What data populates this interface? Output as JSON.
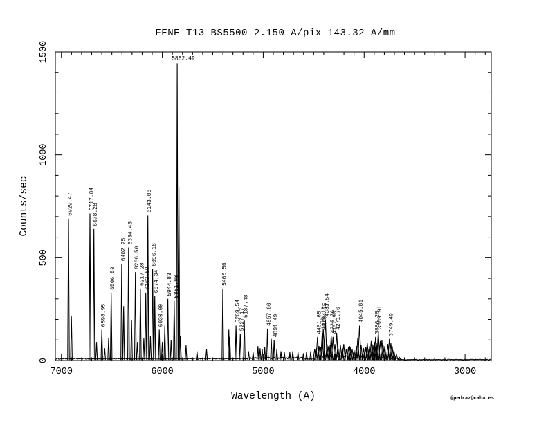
{
  "title": "FENE  T13  BS5500  2.150 A/pix  143.32 A/mm",
  "credit": "@pedraz@caha.es",
  "colors": {
    "line": "#000000",
    "background": "#ffffff",
    "text": "#000000"
  },
  "chart_data": {
    "type": "line",
    "title": "FENE  T13  BS5500  2.150 A/pix  143.32 A/mm",
    "xlabel": "Wavelength (A)",
    "ylabel": "Counts/sec",
    "x_axis": {
      "left_value": 7060,
      "right_value": 2740,
      "reversed": true,
      "major_ticks": [
        7000,
        6000,
        5000,
        4000,
        3000
      ],
      "minor_tick_interval": 100
    },
    "y_axis": {
      "min": 0,
      "max": 1500,
      "major_ticks": [
        0,
        500,
        1000,
        1500
      ],
      "minor_tick_interval": 100
    },
    "legend": "none",
    "grid": false,
    "baseline_counts": 6,
    "labeled_peaks": [
      {
        "label": "6929.47",
        "wavelength": 6929.47,
        "counts": 690,
        "orientation": "vertical"
      },
      {
        "label": "6717.04",
        "wavelength": 6717.04,
        "counts": 715,
        "orientation": "vertical"
      },
      {
        "label": "6678.28",
        "wavelength": 6678.28,
        "counts": 640,
        "orientation": "vertical"
      },
      {
        "label": "6598.95",
        "wavelength": 6598.95,
        "counts": 150,
        "orientation": "vertical"
      },
      {
        "label": "6506.53",
        "wavelength": 6506.53,
        "counts": 330,
        "orientation": "vertical"
      },
      {
        "label": "6402.25",
        "wavelength": 6402.25,
        "counts": 470,
        "orientation": "vertical"
      },
      {
        "label": "6334.43",
        "wavelength": 6334.43,
        "counts": 550,
        "orientation": "vertical"
      },
      {
        "label": "6266.50",
        "wavelength": 6266.5,
        "counts": 430,
        "orientation": "vertical"
      },
      {
        "label": "6217.28",
        "wavelength": 6217.28,
        "counts": 350,
        "orientation": "vertical"
      },
      {
        "label": "6163.59",
        "wavelength": 6163.59,
        "counts": 330,
        "orientation": "vertical"
      },
      {
        "label": "6143.06",
        "wavelength": 6143.06,
        "counts": 705,
        "orientation": "vertical"
      },
      {
        "label": "6096.18",
        "wavelength": 6096.18,
        "counts": 445,
        "orientation": "vertical"
      },
      {
        "label": "6074.34",
        "wavelength": 6074.34,
        "counts": 315,
        "orientation": "vertical"
      },
      {
        "label": "6030.00",
        "wavelength": 6030.0,
        "counts": 150,
        "orientation": "vertical"
      },
      {
        "label": "5944.83",
        "wavelength": 5944.83,
        "counts": 300,
        "orientation": "vertical"
      },
      {
        "label": "5881.90",
        "wavelength": 5881.9,
        "counts": 290,
        "orientation": "vertical"
      },
      {
        "label": "5852.49",
        "wavelength": 5852.49,
        "counts": 1445,
        "orientation": "horizontal"
      },
      {
        "label": "5400.56",
        "wavelength": 5400.56,
        "counts": 350,
        "orientation": "vertical"
      },
      {
        "label": "5269.54",
        "wavelength": 5269.54,
        "counts": 170,
        "orientation": "vertical"
      },
      {
        "label": "5227.17",
        "wavelength": 5227.17,
        "counts": 130,
        "orientation": "vertical"
      },
      {
        "label": "5187.48",
        "wavelength": 5187.48,
        "counts": 195,
        "orientation": "vertical"
      },
      {
        "label": "4957.60",
        "wavelength": 4957.6,
        "counts": 155,
        "orientation": "vertical"
      },
      {
        "label": "4891.49",
        "wavelength": 4891.49,
        "counts": 100,
        "orientation": "vertical"
      },
      {
        "label": "4461.65",
        "wavelength": 4461.65,
        "counts": 115,
        "orientation": "vertical"
      },
      {
        "label": "4415.12",
        "wavelength": 4415.12,
        "counts": 135,
        "orientation": "vertical"
      },
      {
        "label": "4404.75",
        "wavelength": 4404.75,
        "counts": 155,
        "orientation": "vertical"
      },
      {
        "label": "4383.54",
        "wavelength": 4383.54,
        "counts": 200,
        "orientation": "vertical"
      },
      {
        "label": "4325.76",
        "wavelength": 4325.76,
        "counts": 120,
        "orientation": "vertical"
      },
      {
        "label": "4307.90",
        "wavelength": 4307.9,
        "counts": 115,
        "orientation": "vertical"
      },
      {
        "label": "4271.76",
        "wavelength": 4271.76,
        "counts": 135,
        "orientation": "vertical"
      },
      {
        "label": "4045.81",
        "wavelength": 4045.81,
        "counts": 170,
        "orientation": "vertical"
      },
      {
        "label": "3886.28",
        "wavelength": 3886.28,
        "counts": 115,
        "orientation": "vertical"
      },
      {
        "label": "3859.91",
        "wavelength": 3859.91,
        "counts": 140,
        "orientation": "vertical"
      },
      {
        "label": "3749.49",
        "wavelength": 3749.49,
        "counts": 105,
        "orientation": "vertical"
      }
    ],
    "unlabeled_peaks": [
      [
        6901,
        215
      ],
      [
        6652,
        90
      ],
      [
        6571,
        60
      ],
      [
        6532,
        110
      ],
      [
        6383,
        265
      ],
      [
        6305,
        195
      ],
      [
        6246,
        90
      ],
      [
        6183,
        110
      ],
      [
        6118,
        120
      ],
      [
        6000,
        90
      ],
      [
        5975,
        170
      ],
      [
        5913,
        100
      ],
      [
        5835,
        845
      ],
      [
        5820,
        120
      ],
      [
        5765,
        75
      ],
      [
        5656,
        45
      ],
      [
        5562,
        55
      ],
      [
        5341,
        150
      ],
      [
        5331,
        115
      ],
      [
        5145,
        45
      ],
      [
        5100,
        40
      ],
      [
        5052,
        70
      ],
      [
        5031,
        60
      ],
      [
        5010,
        55
      ],
      [
        4985,
        65
      ],
      [
        4920,
        105
      ],
      [
        4865,
        55
      ],
      [
        4824,
        45
      ],
      [
        4790,
        40
      ],
      [
        4736,
        40
      ],
      [
        4707,
        45
      ],
      [
        4655,
        40
      ],
      [
        4602,
        35
      ],
      [
        4571,
        40
      ],
      [
        4530,
        45
      ],
      [
        4490,
        55
      ],
      [
        4476,
        60
      ],
      [
        4447,
        70
      ],
      [
        4430,
        65
      ],
      [
        4367,
        80
      ],
      [
        4352,
        70
      ],
      [
        4337,
        75
      ],
      [
        4290,
        80
      ],
      [
        4260,
        70
      ],
      [
        4235,
        75
      ],
      [
        4216,
        60
      ],
      [
        4202,
        80
      ],
      [
        4177,
        55
      ],
      [
        4155,
        65
      ],
      [
        4143,
        70
      ],
      [
        4132,
        65
      ],
      [
        4118,
        55
      ],
      [
        4100,
        50
      ],
      [
        4077,
        70
      ],
      [
        4063,
        110
      ],
      [
        4030,
        75
      ],
      [
        4005,
        60
      ],
      [
        3984,
        65
      ],
      [
        3969,
        85
      ],
      [
        3948,
        70
      ],
      [
        3930,
        95
      ],
      [
        3920,
        80
      ],
      [
        3906,
        75
      ],
      [
        3895,
        90
      ],
      [
        3878,
        85
      ],
      [
        3840,
        95
      ],
      [
        3824,
        100
      ],
      [
        3812,
        75
      ],
      [
        3795,
        70
      ],
      [
        3765,
        80
      ],
      [
        3735,
        85
      ],
      [
        3722,
        70
      ],
      [
        3705,
        50
      ],
      [
        3680,
        30
      ],
      [
        3650,
        15
      ]
    ]
  }
}
